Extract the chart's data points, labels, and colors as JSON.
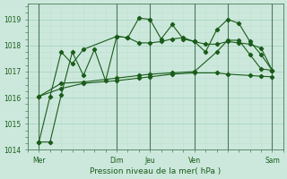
{
  "xlabel": "Pression niveau de la mer( hPa )",
  "background_color": "#cce8dc",
  "grid_color_major": "#a8d4c0",
  "grid_color_minor": "#c0e0d0",
  "line_color": "#1a5c1a",
  "ylim": [
    1014.0,
    1019.6
  ],
  "xlim": [
    0,
    23
  ],
  "yticks": [
    1014,
    1015,
    1016,
    1017,
    1018,
    1019
  ],
  "xtick_positions": [
    1,
    8,
    11,
    15,
    18,
    22
  ],
  "xtick_labels": [
    "Mer",
    "Dim",
    "Jeu",
    "Ven",
    "",
    "Sam"
  ],
  "vlines": [
    1,
    8,
    11,
    15,
    18,
    22
  ],
  "line1_x": [
    1,
    2,
    3,
    4,
    5,
    8,
    9,
    10,
    11,
    12,
    13,
    14,
    15,
    16,
    17,
    18,
    19,
    20,
    21,
    22
  ],
  "line1_y": [
    1014.3,
    1016.05,
    1017.75,
    1017.3,
    1017.85,
    1018.35,
    1018.3,
    1019.05,
    1019.0,
    1018.25,
    1018.8,
    1018.25,
    1018.15,
    1017.75,
    1018.6,
    1019.0,
    1018.85,
    1018.15,
    1017.65,
    1017.05
  ],
  "line2_x": [
    1,
    2,
    3,
    4,
    5,
    6,
    7,
    8,
    9,
    10,
    11,
    12,
    13,
    14,
    15,
    16,
    17,
    18,
    19,
    20,
    21,
    22
  ],
  "line2_y": [
    1014.3,
    1014.3,
    1016.1,
    1017.75,
    1016.85,
    1017.85,
    1016.65,
    1018.35,
    1018.3,
    1018.1,
    1018.1,
    1018.15,
    1018.25,
    1018.3,
    1018.15,
    1018.05,
    1018.05,
    1018.15,
    1018.1,
    1018.05,
    1017.9,
    1017.05
  ],
  "line3_x": [
    1,
    3,
    5,
    8,
    10,
    11,
    13,
    15,
    17,
    18,
    19,
    20,
    21,
    22
  ],
  "line3_y": [
    1016.05,
    1016.55,
    1016.6,
    1016.75,
    1016.85,
    1016.9,
    1016.95,
    1017.0,
    1017.75,
    1018.2,
    1018.2,
    1017.65,
    1017.1,
    1017.05
  ],
  "line4_x": [
    1,
    3,
    5,
    8,
    10,
    11,
    13,
    15,
    17,
    18,
    20,
    21,
    22
  ],
  "line4_y": [
    1016.05,
    1016.35,
    1016.55,
    1016.65,
    1016.75,
    1016.8,
    1016.9,
    1016.95,
    1016.95,
    1016.9,
    1016.85,
    1016.82,
    1016.8
  ]
}
